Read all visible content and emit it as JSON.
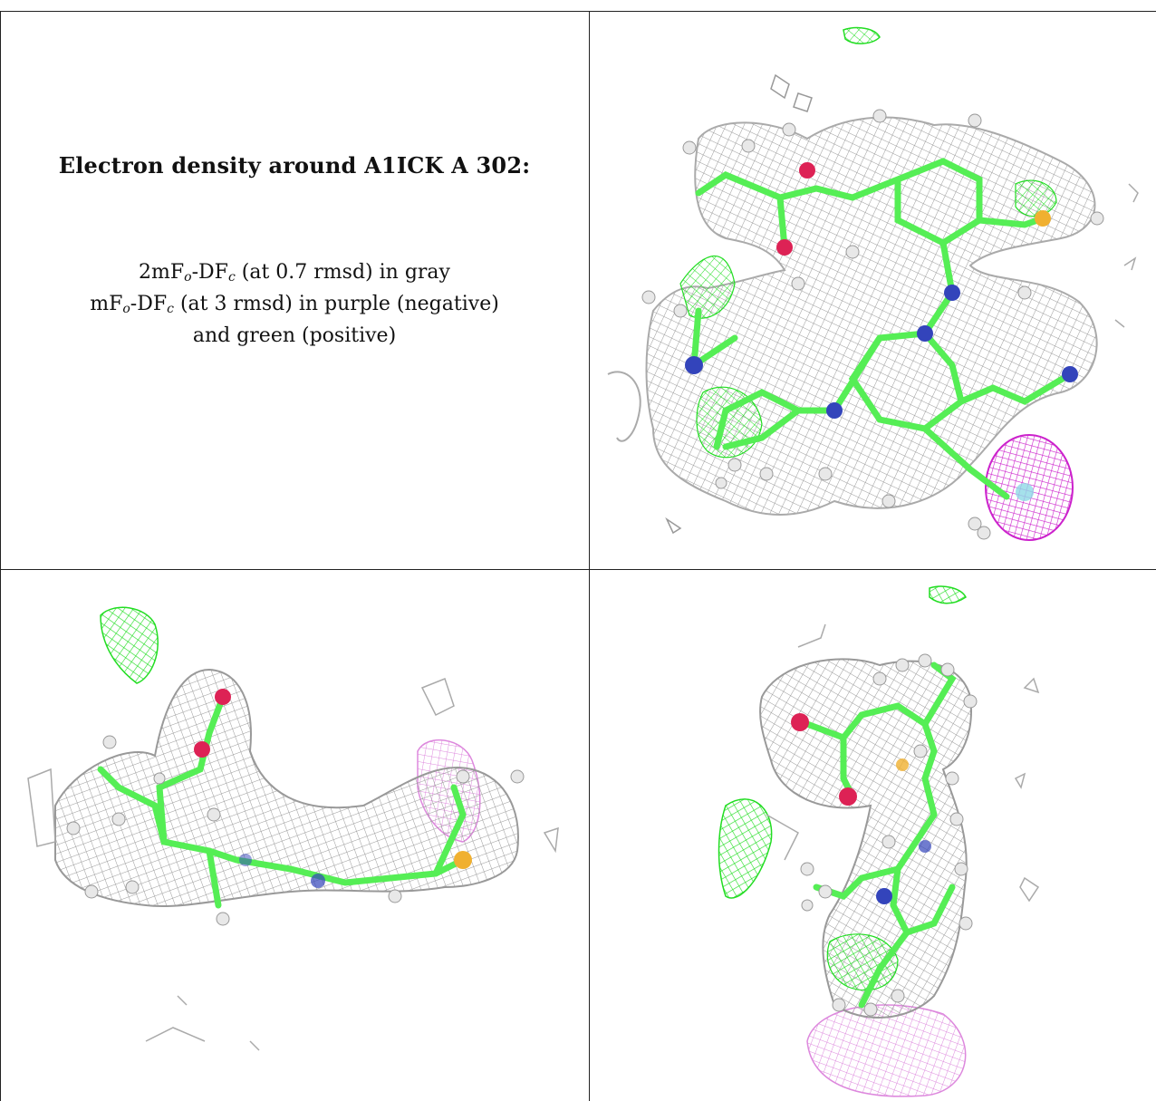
{
  "caption": {
    "title": "Electron density around A1ICK A 302:",
    "line1_prefix": "2mF",
    "line1_sub1": "o",
    "line1_mid": "-DF",
    "line1_sub2": "c",
    "line1_suffix": " (at 0.7 rmsd) in gray",
    "line2_prefix": "mF",
    "line2_sub1": "o",
    "line2_mid": "-DF",
    "line2_sub2": "c",
    "line2_suffix": " (at 3 rmsd) in purple (negative)",
    "line3": "and green (positive)"
  },
  "colors": {
    "density_2fofc": "#9a9a9a",
    "density_positive": "#22dd22",
    "density_negative": "#cc22cc",
    "carbon": "#55ee55",
    "nitrogen": "#3344bb",
    "oxygen": "#dd2255",
    "sulfur": "#f0b030",
    "hydrogen": "#e8e8e8"
  }
}
